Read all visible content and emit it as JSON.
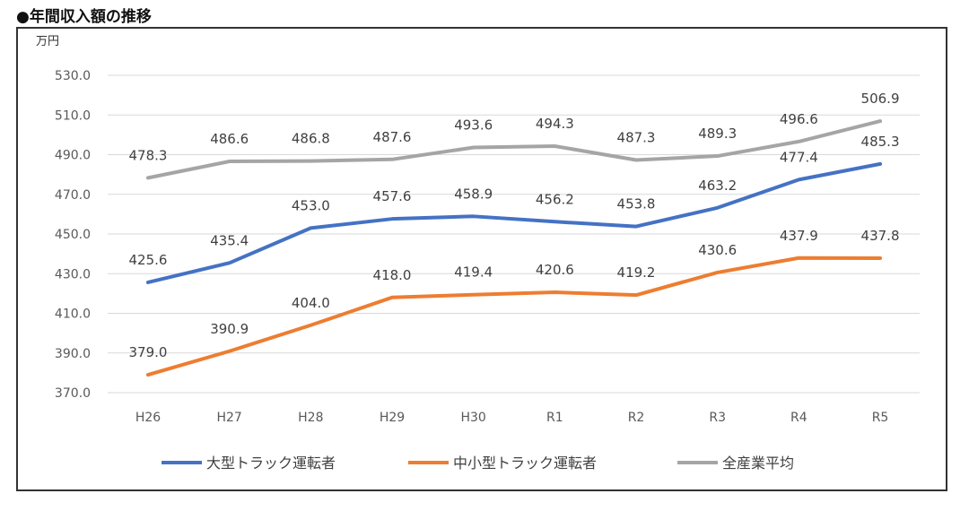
{
  "chart_data": {
    "type": "line",
    "title": "●年間収入額の推移",
    "ylabel": "万円",
    "xlabel": "",
    "categories": [
      "H26",
      "H27",
      "H28",
      "H29",
      "H30",
      "R1",
      "R2",
      "R3",
      "R4",
      "R5"
    ],
    "ylim": [
      370,
      530
    ],
    "yticks": [
      "370.0",
      "390.0",
      "410.0",
      "430.0",
      "450.0",
      "470.0",
      "490.0",
      "510.0",
      "530.0"
    ],
    "grid": true,
    "legend_position": "bottom",
    "series": [
      {
        "name": "大型トラック運転者",
        "color": "#4472C4",
        "values": [
          425.6,
          435.4,
          453.0,
          457.6,
          458.9,
          456.2,
          453.8,
          463.2,
          477.4,
          485.3
        ]
      },
      {
        "name": "中小型トラック運転者",
        "color": "#ED7D31",
        "values": [
          379.0,
          390.9,
          404.0,
          418.0,
          419.4,
          420.6,
          419.2,
          430.6,
          437.9,
          437.8
        ]
      },
      {
        "name": "全産業平均",
        "color": "#A5A5A5",
        "values": [
          478.3,
          486.6,
          486.8,
          487.6,
          493.6,
          494.3,
          487.3,
          489.3,
          496.6,
          506.9
        ]
      }
    ]
  }
}
